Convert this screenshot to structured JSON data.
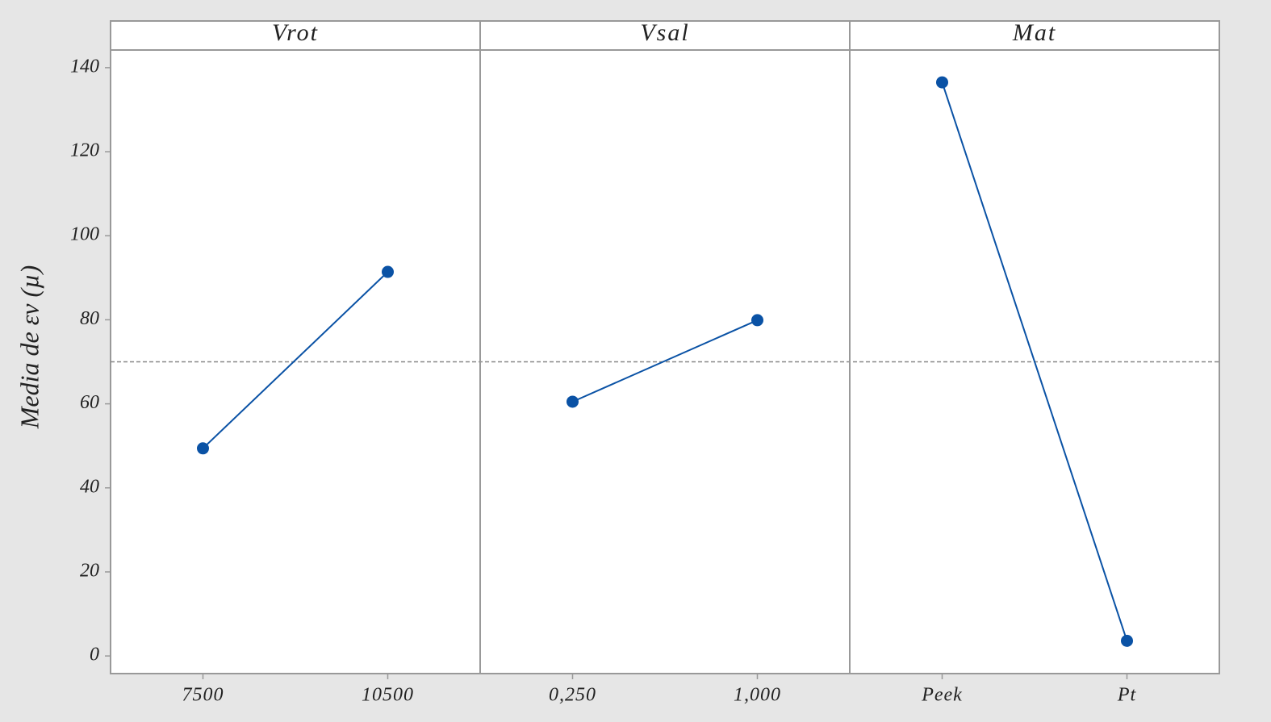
{
  "chart_data": {
    "type": "line",
    "ylabel": "Media de εv (µ)",
    "ylim": [
      -4.2,
      144.2
    ],
    "yticks": [
      0,
      20,
      40,
      60,
      80,
      100,
      120,
      140
    ],
    "reference_line": 70,
    "color": "#0a52a5",
    "panels": [
      {
        "title": "Vrot",
        "categories": [
          "7500",
          "10500"
        ],
        "values": [
          49.4,
          91.4
        ]
      },
      {
        "title": "Vsal",
        "categories": [
          "0,250",
          "1,000"
        ],
        "values": [
          60.5,
          79.9
        ]
      },
      {
        "title": "Mat",
        "categories": [
          "Peek",
          "Pt"
        ],
        "values": [
          136.5,
          3.6
        ]
      }
    ]
  }
}
